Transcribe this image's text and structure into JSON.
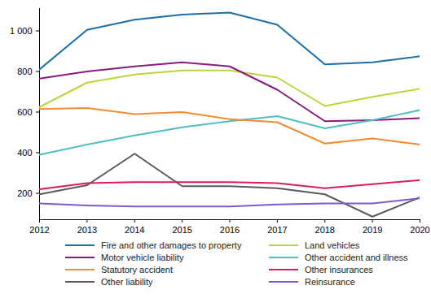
{
  "chart_data": {
    "type": "line",
    "x": [
      2012,
      2013,
      2014,
      2015,
      2016,
      2017,
      2018,
      2019,
      2020
    ],
    "xlim": [
      2012,
      2020
    ],
    "xticks": [
      2012,
      2013,
      2014,
      2015,
      2016,
      2017,
      2018,
      2019,
      2020
    ],
    "ylim": [
      70,
      1110
    ],
    "yticks": [
      200,
      400,
      600,
      800,
      {
        "value": 1000,
        "label": "1 000"
      }
    ],
    "grid": false,
    "legend": "bottom",
    "series": [
      {
        "name": "Fire and other damages to property",
        "color": "#1b6fa8",
        "values": [
          810,
          1005,
          1055,
          1080,
          1090,
          1030,
          835,
          845,
          875
        ]
      },
      {
        "name": "Land vehicles",
        "color": "#bcd538",
        "values": [
          625,
          745,
          785,
          805,
          805,
          770,
          630,
          675,
          715
        ]
      },
      {
        "name": "Motor vehicle liability",
        "color": "#8b1a7e",
        "values": [
          765,
          800,
          825,
          845,
          825,
          710,
          555,
          560,
          570
        ]
      },
      {
        "name": "Other accident and illness",
        "color": "#4dbfc0",
        "values": [
          390,
          440,
          485,
          525,
          555,
          580,
          520,
          560,
          610
        ]
      },
      {
        "name": "Statutory accident",
        "color": "#f28c2e",
        "values": [
          615,
          620,
          590,
          600,
          565,
          550,
          445,
          470,
          440
        ]
      },
      {
        "name": "Other insurances",
        "color": "#d91e5b",
        "values": [
          220,
          250,
          255,
          255,
          255,
          250,
          225,
          245,
          265
        ]
      },
      {
        "name": "Other liability",
        "color": "#5a5a5a",
        "values": [
          195,
          240,
          395,
          235,
          235,
          225,
          195,
          85,
          180
        ]
      },
      {
        "name": "Reinsurance",
        "color": "#7a5ccf",
        "values": [
          150,
          140,
          135,
          135,
          135,
          145,
          150,
          150,
          175
        ]
      }
    ]
  }
}
